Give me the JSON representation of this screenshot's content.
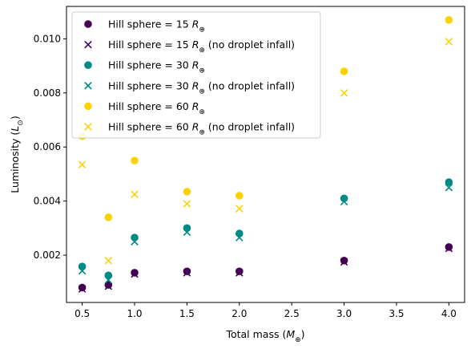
{
  "chart_data": {
    "type": "scatter",
    "xlabel": "Total mass (M⊕)",
    "ylabel": "Luminosity (L⊙)",
    "xlim": [
      0.35,
      4.15
    ],
    "ylim": [
      0.00025,
      0.0112
    ],
    "xticks": [
      0.5,
      1.0,
      1.5,
      2.0,
      2.5,
      3.0,
      3.5,
      4.0
    ],
    "xtick_labels": [
      "0.5",
      "1.0",
      "1.5",
      "2.0",
      "2.5",
      "3.0",
      "3.5",
      "4.0"
    ],
    "yticks": [
      0.002,
      0.004,
      0.006,
      0.008,
      0.01
    ],
    "ytick_labels": [
      "0.002",
      "0.004",
      "0.006",
      "0.008",
      "0.010"
    ],
    "grid": false,
    "legend_position": "top-left",
    "x": [
      0.5,
      0.75,
      1.0,
      1.5,
      2.0,
      3.0,
      4.0
    ],
    "series": [
      {
        "name": "Hill sphere = 15 R⊕",
        "marker": "circle",
        "color": "#440154",
        "values": [
          0.0008,
          0.0009,
          0.00135,
          0.0014,
          0.0014,
          0.0018,
          0.0023
        ]
      },
      {
        "name": "Hill sphere = 15 R⊕ (no droplet infall)",
        "marker": "x",
        "color": "#440154",
        "values": [
          0.00075,
          0.00085,
          0.0013,
          0.00135,
          0.00135,
          0.00175,
          0.00225
        ]
      },
      {
        "name": "Hill sphere = 30 R⊕",
        "marker": "circle",
        "color": "#008b85",
        "values": [
          0.00158,
          0.00125,
          0.00265,
          0.003,
          0.0028,
          0.0041,
          0.0047
        ]
      },
      {
        "name": "Hill sphere = 30 R⊕ (no droplet infall)",
        "marker": "x",
        "color": "#008b85",
        "values": [
          0.00142,
          0.00108,
          0.0025,
          0.00285,
          0.00265,
          0.00398,
          0.0045
        ]
      },
      {
        "name": "Hill sphere = 60 R⊕",
        "marker": "circle",
        "color": "#fcd206",
        "values": [
          0.0064,
          0.0034,
          0.0055,
          0.00435,
          0.0042,
          0.0088,
          0.0107
        ]
      },
      {
        "name": "Hill sphere = 60 R⊕ (no droplet infall)",
        "marker": "x",
        "color": "#fcd206",
        "values": [
          0.00535,
          0.0018,
          0.00425,
          0.0039,
          0.00372,
          0.008,
          0.0099
        ]
      }
    ]
  }
}
